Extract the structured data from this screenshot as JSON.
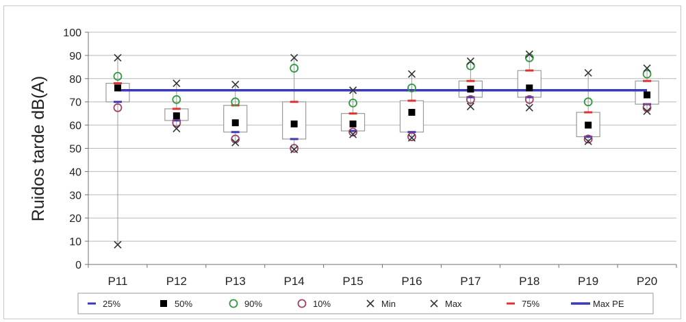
{
  "chart_data": {
    "type": "boxplot",
    "title": "",
    "xlabel": "",
    "ylabel": "Ruidos tarde dB(A)",
    "ylim": [
      0,
      100
    ],
    "yticks": [
      0,
      10,
      20,
      30,
      40,
      50,
      60,
      70,
      80,
      90,
      100
    ],
    "grid": true,
    "legend_position": "bottom",
    "categories": [
      "P11",
      "P12",
      "P13",
      "P14",
      "P15",
      "P16",
      "P17",
      "P18",
      "P19",
      "P20"
    ],
    "series": [
      {
        "name": "25%",
        "marker": "dash",
        "color": "#3a3ab8",
        "values": [
          70,
          62,
          57,
          54,
          57.5,
          57,
          72,
          72,
          55,
          69
        ]
      },
      {
        "name": "50%",
        "marker": "square",
        "color": "#000000",
        "values": [
          76,
          64,
          61,
          60.5,
          60.5,
          65.5,
          75.5,
          76,
          60,
          73
        ]
      },
      {
        "name": "90%",
        "marker": "circle",
        "color": "#2e9a3e",
        "values": [
          81,
          71,
          70,
          84.5,
          69.5,
          76,
          85.5,
          89,
          70,
          82
        ]
      },
      {
        "name": "10%",
        "marker": "circle",
        "color": "#a0406a",
        "values": [
          67.5,
          61,
          54,
          50,
          57,
          55,
          71,
          71,
          54,
          67.5
        ]
      },
      {
        "name": "Min",
        "marker": "x",
        "color": "#333333",
        "values": [
          8.5,
          58.5,
          52.5,
          49.5,
          56,
          54.5,
          68,
          67.5,
          53,
          66
        ]
      },
      {
        "name": "Max",
        "marker": "x",
        "color": "#333333",
        "values": [
          89,
          78,
          77.5,
          89,
          75,
          82,
          87.5,
          90.5,
          82.5,
          84.5
        ]
      },
      {
        "name": "75%",
        "marker": "dash",
        "color": "#e03030",
        "values": [
          78,
          67,
          68.5,
          70,
          65,
          70.5,
          79,
          83.5,
          65.5,
          79
        ]
      },
      {
        "name": "Max PE",
        "marker": "line",
        "color": "#3a3ab8",
        "values": [
          75,
          75,
          75,
          75,
          75,
          75,
          75,
          75,
          75,
          75
        ]
      }
    ]
  },
  "colors": {
    "grid": "#b8b8b8",
    "box_border": "#9a9a9a",
    "axis": "#707070",
    "text": "#222222"
  }
}
